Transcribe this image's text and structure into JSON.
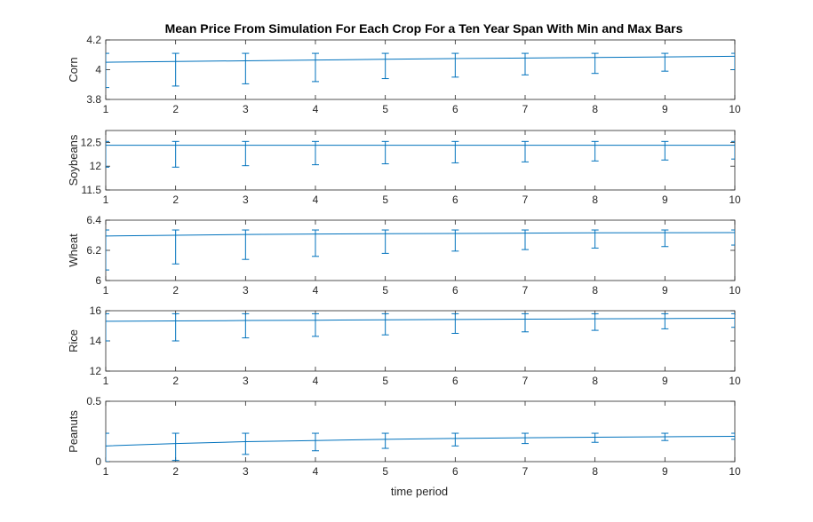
{
  "chart_data": {
    "type": "line",
    "title": "Mean Price From Simulation For Each Crop For a Ten Year Span With Min and Max Bars",
    "xlabel": "time period",
    "x": [
      1,
      2,
      3,
      4,
      5,
      6,
      7,
      8,
      9,
      10
    ],
    "xlim": [
      1,
      10
    ],
    "line_color": "#0072BD",
    "subplots": [
      {
        "ylabel": "Corn",
        "ylim": [
          3.8,
          4.2
        ],
        "yticks": [
          "3.8",
          "4",
          "4.2"
        ],
        "ytick_values": [
          3.8,
          4.0,
          4.2
        ],
        "mean": [
          4.05,
          4.055,
          4.06,
          4.065,
          4.07,
          4.075,
          4.078,
          4.082,
          4.086,
          4.09
        ],
        "min": [
          3.88,
          3.89,
          3.905,
          3.92,
          3.94,
          3.95,
          3.965,
          3.975,
          3.99,
          4.0
        ],
        "max": [
          4.11,
          4.11,
          4.11,
          4.11,
          4.11,
          4.11,
          4.11,
          4.11,
          4.11,
          4.11
        ]
      },
      {
        "ylabel": "Soybeans",
        "ylim": [
          11.5,
          12.75
        ],
        "yticks": [
          "11.5",
          "12",
          "12.5"
        ],
        "ytick_values": [
          11.5,
          12.0,
          12.5
        ],
        "mean": [
          12.44,
          12.44,
          12.44,
          12.44,
          12.44,
          12.44,
          12.44,
          12.44,
          12.44,
          12.44
        ],
        "min": [
          11.98,
          11.98,
          12.01,
          12.03,
          12.05,
          12.07,
          12.09,
          12.11,
          12.13,
          12.15
        ],
        "max": [
          12.52,
          12.52,
          12.52,
          12.52,
          12.52,
          12.52,
          12.52,
          12.52,
          12.52,
          12.52
        ]
      },
      {
        "ylabel": "Wheat",
        "ylim": [
          6.0,
          6.4
        ],
        "yticks": [
          "6",
          "6.2",
          "6.4"
        ],
        "ytick_values": [
          6.0,
          6.2,
          6.4
        ],
        "mean": [
          6.295,
          6.3,
          6.305,
          6.308,
          6.31,
          6.312,
          6.314,
          6.316,
          6.317,
          6.318
        ],
        "min": [
          6.07,
          6.11,
          6.14,
          6.16,
          6.18,
          6.195,
          6.205,
          6.215,
          6.225,
          6.235
        ],
        "max": [
          6.335,
          6.335,
          6.335,
          6.335,
          6.335,
          6.335,
          6.335,
          6.335,
          6.335,
          6.335
        ]
      },
      {
        "ylabel": "Rice",
        "ylim": [
          12,
          16
        ],
        "yticks": [
          "12",
          "14",
          "16"
        ],
        "ytick_values": [
          12,
          14,
          16
        ],
        "mean": [
          15.3,
          15.32,
          15.35,
          15.37,
          15.4,
          15.42,
          15.44,
          15.46,
          15.48,
          15.5
        ],
        "min": [
          14.0,
          14.0,
          14.2,
          14.3,
          14.4,
          14.5,
          14.6,
          14.7,
          14.8,
          14.9
        ],
        "max": [
          15.8,
          15.8,
          15.8,
          15.8,
          15.8,
          15.8,
          15.8,
          15.8,
          15.8,
          15.8
        ]
      },
      {
        "ylabel": "Peanuts",
        "ylim": [
          0,
          0.5
        ],
        "yticks": [
          "0",
          "0.5"
        ],
        "ytick_values": [
          0,
          0.5
        ],
        "mean": [
          0.13,
          0.15,
          0.165,
          0.175,
          0.185,
          0.192,
          0.198,
          0.202,
          0.206,
          0.21
        ],
        "min": [
          0.0,
          0.01,
          0.06,
          0.09,
          0.11,
          0.13,
          0.15,
          0.16,
          0.175,
          0.185
        ],
        "max": [
          0.235,
          0.235,
          0.235,
          0.235,
          0.235,
          0.235,
          0.235,
          0.235,
          0.235,
          0.235
        ]
      }
    ]
  }
}
